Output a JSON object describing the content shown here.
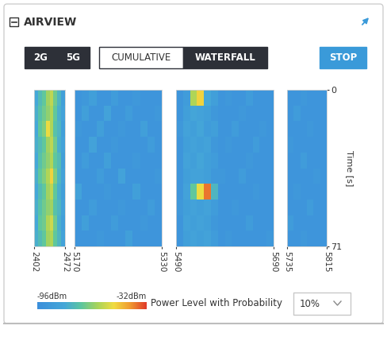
{
  "header": {
    "title": "AIRVIEW"
  },
  "controls": {
    "band_buttons": [
      "2G",
      "5G"
    ],
    "view_buttons": [
      "CUMULATIVE",
      "WATERFALL"
    ],
    "selected_view": "WATERFALL",
    "action_button": "STOP"
  },
  "chart_data": {
    "type": "heatmap",
    "y_label": "Time [s]",
    "ylim": [
      71,
      0
    ],
    "yticks": [
      0,
      71
    ],
    "colorbar": {
      "range": [
        -96,
        -32
      ],
      "ticks": [
        {
          "value": -96,
          "label": "-96dBm"
        },
        {
          "value": -32,
          "label": "-32dBm"
        }
      ]
    },
    "panels": [
      {
        "xlim": [
          2402,
          2472
        ],
        "xticks": [
          2402,
          2472
        ],
        "cells": [
          [
            -80,
            -74,
            -70,
            -62,
            -58,
            -68,
            -76,
            -86
          ],
          [
            -78,
            -72,
            -68,
            -64,
            -60,
            -70,
            -78,
            -84
          ],
          [
            -80,
            -70,
            -66,
            -52,
            -60,
            -72,
            -76,
            -86
          ],
          [
            -78,
            -74,
            -70,
            -62,
            -58,
            -68,
            -78,
            -84
          ],
          [
            -80,
            -72,
            -68,
            -64,
            -60,
            -70,
            -74,
            -86
          ],
          [
            -78,
            -70,
            -66,
            -60,
            -50,
            -66,
            -76,
            -84
          ],
          [
            -80,
            -74,
            -70,
            -62,
            -58,
            -70,
            -78,
            -86
          ],
          [
            -78,
            -72,
            -68,
            -64,
            -62,
            -72,
            -76,
            -84
          ],
          [
            -80,
            -70,
            -68,
            -60,
            -56,
            -68,
            -78,
            -86
          ],
          [
            -78,
            -74,
            -70,
            -62,
            -60,
            -70,
            -76,
            -84
          ]
        ]
      },
      {
        "xlim": [
          5170,
          5330
        ],
        "xticks": [
          5170,
          5330
        ],
        "cells": [
          [
            -92,
            -90,
            -86,
            -92,
            -92,
            -88,
            -92,
            -92,
            -90,
            -92,
            -92,
            -92
          ],
          [
            -92,
            -86,
            -92,
            -92,
            -84,
            -92,
            -92,
            -88,
            -92,
            -92,
            -92,
            -90
          ],
          [
            -90,
            -92,
            -92,
            -86,
            -92,
            -92,
            -90,
            -92,
            -92,
            -86,
            -92,
            -92
          ],
          [
            -92,
            -92,
            -84,
            -92,
            -92,
            -90,
            -92,
            -92,
            -92,
            -92,
            -88,
            -92
          ],
          [
            -92,
            -88,
            -92,
            -92,
            -86,
            -92,
            -92,
            -92,
            -90,
            -92,
            -92,
            -92
          ],
          [
            -92,
            -92,
            -92,
            -88,
            -92,
            -92,
            -84,
            -92,
            -92,
            -92,
            -92,
            -90
          ],
          [
            -84,
            -92,
            -92,
            -92,
            -90,
            -92,
            -92,
            -92,
            -86,
            -92,
            -92,
            -92
          ],
          [
            -92,
            -92,
            -88,
            -92,
            -92,
            -92,
            -90,
            -92,
            -92,
            -92,
            -88,
            -92
          ],
          [
            -92,
            -86,
            -92,
            -92,
            -92,
            -88,
            -92,
            -92,
            -92,
            -90,
            -92,
            -92
          ],
          [
            -92,
            -92,
            -92,
            -90,
            -92,
            -92,
            -92,
            -86,
            -92,
            -92,
            -92,
            -92
          ]
        ]
      },
      {
        "xlim": [
          5490,
          5690
        ],
        "xticks": [
          5490,
          5690
        ],
        "cells": [
          [
            -92,
            -88,
            -60,
            -50,
            -80,
            -86,
            -92,
            -90,
            -92,
            -92,
            -88,
            -92,
            -92,
            -92
          ],
          [
            -92,
            -86,
            -82,
            -84,
            -86,
            -90,
            -92,
            -92,
            -92,
            -90,
            -92,
            -92,
            -92,
            -92
          ],
          [
            -90,
            -84,
            -86,
            -82,
            -88,
            -86,
            -92,
            -92,
            -88,
            -92,
            -92,
            -92,
            -90,
            -92
          ],
          [
            -92,
            -86,
            -84,
            -86,
            -84,
            -90,
            -92,
            -90,
            -92,
            -92,
            -92,
            -88,
            -92,
            -92
          ],
          [
            -92,
            -84,
            -86,
            -82,
            -86,
            -88,
            -92,
            -92,
            -92,
            -92,
            -90,
            -92,
            -92,
            -92
          ],
          [
            -92,
            -86,
            -84,
            -84,
            -86,
            -90,
            -90,
            -92,
            -92,
            -88,
            -92,
            -92,
            -92,
            -92
          ],
          [
            -92,
            -84,
            -70,
            -52,
            -38,
            -76,
            -92,
            -92,
            -92,
            -92,
            -92,
            -90,
            -92,
            -92
          ],
          [
            -90,
            -86,
            -84,
            -86,
            -84,
            -88,
            -92,
            -92,
            -90,
            -92,
            -92,
            -92,
            -92,
            -92
          ],
          [
            -92,
            -84,
            -86,
            -84,
            -86,
            -90,
            -92,
            -92,
            -92,
            -92,
            -88,
            -92,
            -92,
            -92
          ],
          [
            -92,
            -86,
            -84,
            -86,
            -84,
            -88,
            -92,
            -90,
            -92,
            -92,
            -92,
            -92,
            -92,
            -90
          ]
        ]
      },
      {
        "xlim": [
          5735,
          5815
        ],
        "xticks": [
          5735,
          5815
        ],
        "cells": [
          [
            -92,
            -92,
            -90,
            -92,
            -92,
            -92
          ],
          [
            -92,
            -88,
            -92,
            -92,
            -92,
            -92
          ],
          [
            -92,
            -92,
            -92,
            -90,
            -92,
            -92
          ],
          [
            -90,
            -92,
            -92,
            -92,
            -92,
            -92
          ],
          [
            -92,
            -92,
            -88,
            -92,
            -92,
            -92
          ],
          [
            -92,
            -92,
            -92,
            -92,
            -90,
            -92
          ],
          [
            -92,
            -90,
            -92,
            -92,
            -92,
            -92
          ],
          [
            -92,
            -92,
            -92,
            -88,
            -92,
            -92
          ],
          [
            -88,
            -92,
            -92,
            -92,
            -92,
            -92
          ],
          [
            -92,
            -92,
            -90,
            -92,
            -92,
            -92
          ]
        ]
      }
    ]
  },
  "probability_selector": {
    "label": "Power Level with Probability",
    "value": "10%"
  }
}
